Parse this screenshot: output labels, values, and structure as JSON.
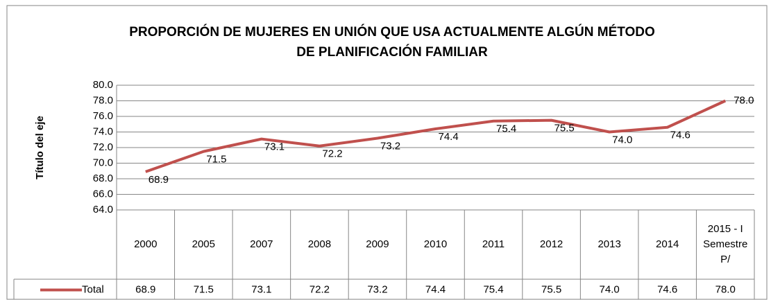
{
  "chart_data": {
    "type": "line",
    "title": [
      "PROPORCIÓN DE MUJERES EN UNIÓN QUE USA ACTUALMENTE ALGÚN MÉTODO",
      "DE PLANIFICACIÓN FAMILIAR"
    ],
    "y_label": "Título del eje",
    "categories": [
      "2000",
      "2005",
      "2007",
      "2008",
      "2009",
      "2010",
      "2011",
      "2012",
      "2013",
      "2014",
      "2015 - I Semestre P/"
    ],
    "series": [
      {
        "name": "Total",
        "color": "#c0504d",
        "values": [
          68.9,
          71.5,
          73.1,
          72.2,
          73.2,
          74.4,
          75.4,
          75.5,
          74.0,
          74.6,
          78.0
        ],
        "value_labels": [
          "68.9",
          "71.5",
          "73.1",
          "72.2",
          "73.2",
          "74.4",
          "75.4",
          "75.5",
          "74.0",
          "74.6",
          "78.0"
        ]
      }
    ],
    "ylim": [
      64,
      80
    ],
    "yticks": [
      {
        "value": 64,
        "label": "64.0"
      },
      {
        "value": 66,
        "label": "66.0"
      },
      {
        "value": 68,
        "label": "68.0"
      },
      {
        "value": 70,
        "label": "70.0"
      },
      {
        "value": 72,
        "label": "72.0"
      },
      {
        "value": 74,
        "label": "74.0"
      },
      {
        "value": 76,
        "label": "76.0"
      },
      {
        "value": 78,
        "label": "78.0"
      },
      {
        "value": 80,
        "label": "80.0"
      }
    ],
    "grid": true,
    "data_table": true
  }
}
